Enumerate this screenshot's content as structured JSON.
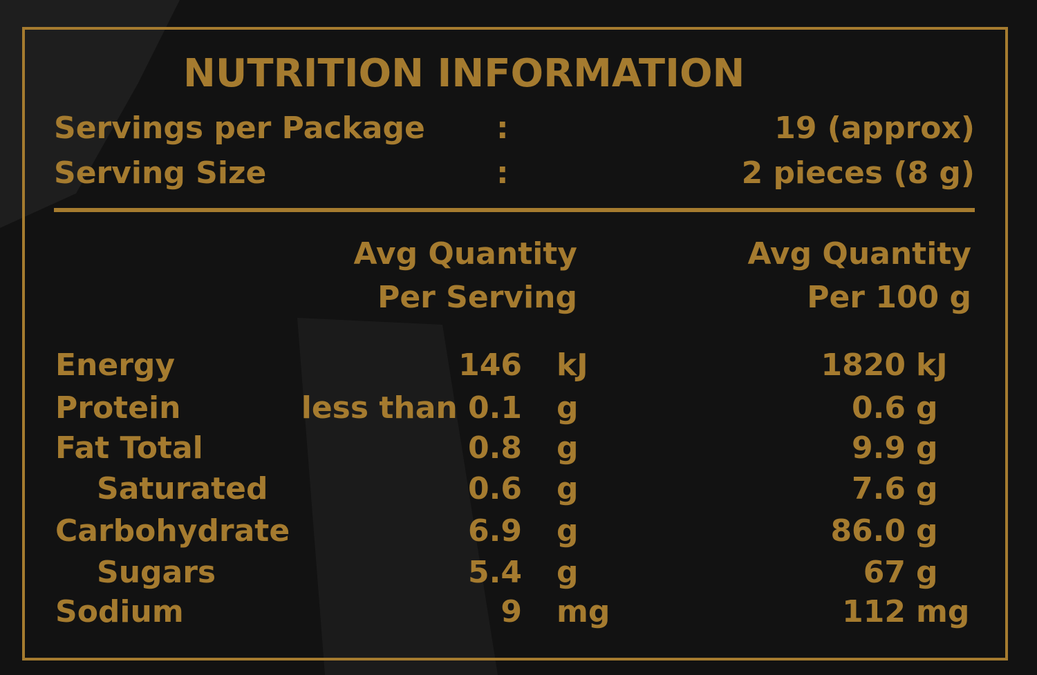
{
  "header": {
    "title": "NUTRITION INFORMATION"
  },
  "servings": [
    {
      "label": "Servings per Package",
      "separator": ":",
      "value": "19 (approx)"
    },
    {
      "label": "Serving Size",
      "separator": ":",
      "value": "2 pieces (8 g)"
    }
  ],
  "table": {
    "columns": [
      {
        "line1": "Avg Quantity",
        "line2": "Per Serving"
      },
      {
        "line1": "Avg Quantity",
        "line2": "Per 100 g"
      }
    ],
    "rows": [
      {
        "nutrient": "Energy",
        "per_serving": "146",
        "per_serving_unit": "kJ",
        "per_100g": "1820",
        "per_100g_unit": "kJ"
      },
      {
        "nutrient": "Protein",
        "per_serving": "less than 0.1",
        "per_serving_unit": "g",
        "per_100g": "0.6",
        "per_100g_unit": "g"
      },
      {
        "nutrient": "Fat Total",
        "per_serving": "0.8",
        "per_serving_unit": "g",
        "per_100g": "9.9",
        "per_100g_unit": "g"
      },
      {
        "nutrient": "Saturated",
        "per_serving": "0.6",
        "per_serving_unit": "g",
        "per_100g": "7.6",
        "per_100g_unit": "g"
      },
      {
        "nutrient": "Carbohydrate",
        "per_serving": "6.9",
        "per_serving_unit": "g",
        "per_100g": "86.0",
        "per_100g_unit": "g"
      },
      {
        "nutrient": "Sugars",
        "per_serving": "5.4",
        "per_serving_unit": "g",
        "per_100g": "67",
        "per_100g_unit": "g"
      },
      {
        "nutrient": "Sodium",
        "per_serving": "9",
        "per_serving_unit": "mg",
        "per_100g": "112",
        "per_100g_unit": "mg"
      }
    ]
  }
}
